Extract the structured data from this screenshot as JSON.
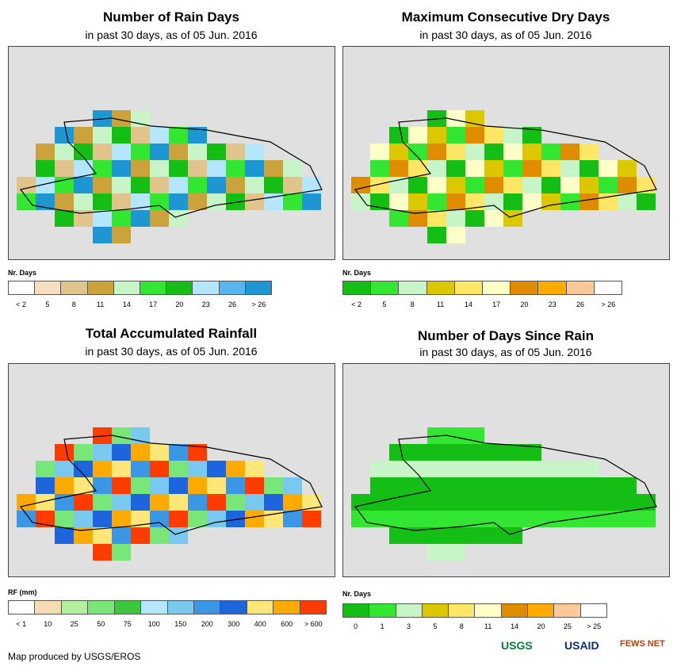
{
  "panels": [
    {
      "id": "rain-days",
      "title": "Number of Rain Days",
      "subtitle": "in past 30 days, as of 05 Jun. 2016",
      "legend_title": "Nr. Days",
      "legend_labels": [
        "< 2",
        "5",
        "8",
        "11",
        "14",
        "17",
        "20",
        "23",
        "26",
        "> 26"
      ],
      "legend_colors": [
        "#ffffff",
        "#f5dfc0",
        "#e0c48c",
        "#cca23c",
        "#c8f5c8",
        "#32e632",
        "#14be14",
        "#b4e6ff",
        "#5ab4f0",
        "#1e96d2"
      ]
    },
    {
      "id": "dry-days",
      "title": "Maximum Consecutive Dry Days",
      "subtitle": "in past 30 days, as of 05 Jun. 2016",
      "legend_title": "Nr. Days",
      "legend_labels": [
        "< 2",
        "5",
        "8",
        "11",
        "14",
        "17",
        "20",
        "23",
        "26",
        "> 26"
      ],
      "legend_colors": [
        "#14be14",
        "#32e632",
        "#c8f5c8",
        "#dcc800",
        "#ffe664",
        "#ffffc8",
        "#e08c00",
        "#ffaa00",
        "#ffc896",
        "#ffffff"
      ]
    },
    {
      "id": "rainfall",
      "title": "Total Accumulated Rainfall",
      "subtitle": "in past 30 days, as of 05 Jun. 2016",
      "legend_title": "RF (mm)",
      "legend_labels": [
        "< 1",
        "10",
        "25",
        "50",
        "75",
        "100",
        "150",
        "200",
        "300",
        "400",
        "600",
        "> 600"
      ],
      "legend_colors": [
        "#ffffff",
        "#f5dcb4",
        "#b4f0a0",
        "#78e678",
        "#3cc83c",
        "#b4e6ff",
        "#78c8f0",
        "#3c96e6",
        "#1e64dc",
        "#ffe678",
        "#ffaa00",
        "#ff3c00"
      ]
    },
    {
      "id": "since-rain",
      "title": "Number of Days Since Rain",
      "subtitle": "in past 30 days, as of 05 Jun. 2016",
      "legend_title": "Nr. Days",
      "legend_labels": [
        "0",
        "1",
        "3",
        "5",
        "8",
        "11",
        "14",
        "20",
        "25",
        "> 25"
      ],
      "legend_colors": [
        "#14be14",
        "#32e632",
        "#c8f5c8",
        "#dcc800",
        "#ffe664",
        "#ffffc8",
        "#e08c00",
        "#ffaa00",
        "#ffc896",
        "#ffffff"
      ]
    }
  ],
  "credit": "Map produced by USGS/EROS",
  "logos": [
    "USGS",
    "USAID",
    "FEWS NET"
  ]
}
